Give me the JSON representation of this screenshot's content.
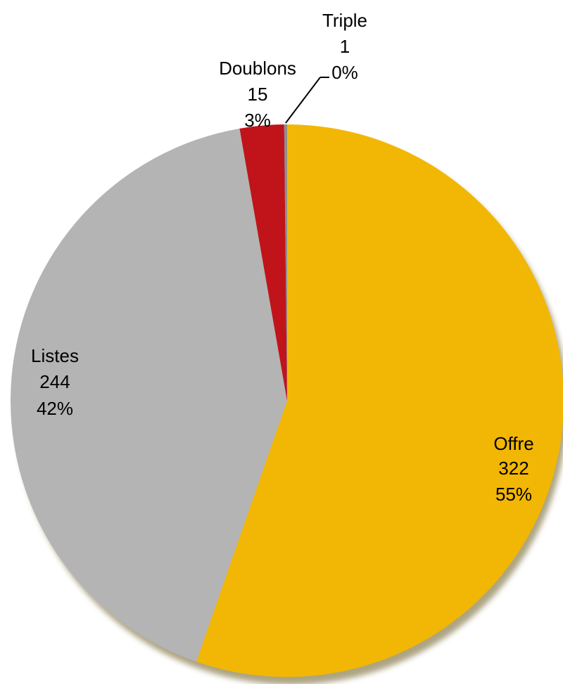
{
  "chart_data": {
    "type": "pie",
    "title": "",
    "slices": [
      {
        "label": "Offre",
        "value": 322,
        "percent": "55%",
        "color": "#F2B705"
      },
      {
        "label": "Listes",
        "value": 244,
        "percent": "42%",
        "color": "#B4B4B4"
      },
      {
        "label": "Doublons",
        "value": 15,
        "percent": "3%",
        "color": "#C0141A"
      },
      {
        "label": "Triple",
        "value": 1,
        "percent": "0%",
        "color": "#8E8E8E"
      }
    ],
    "legend": "none",
    "data_labels": "category, value, percentage"
  }
}
